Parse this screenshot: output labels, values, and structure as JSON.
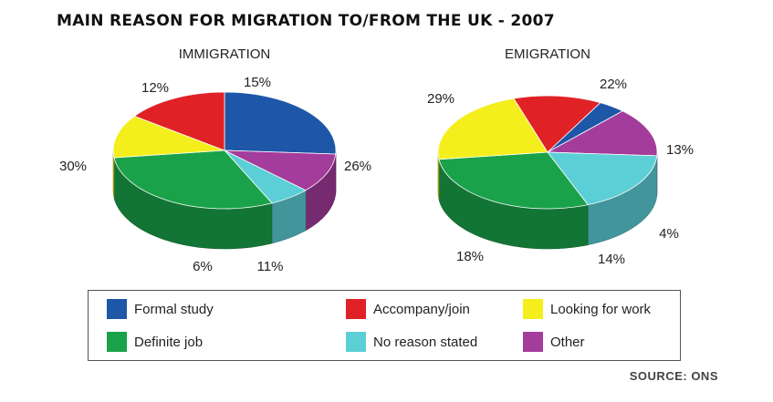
{
  "title": "MAIN REASON FOR MIGRATION TO/FROM THE UK - 2007",
  "source": "SOURCE: ONS",
  "colors": {
    "Formal study": "#1e56a8",
    "Accompany/join": "#e02226",
    "Looking for work": "#f4ef1c",
    "Definite job": "#1aa24a",
    "No reason stated": "#5ccfd6",
    "Other": "#a43c9c"
  },
  "legend": [
    {
      "label": "Formal study",
      "color": "#1e56a8"
    },
    {
      "label": "Accompany/join",
      "color": "#e02226"
    },
    {
      "label": "Looking for work",
      "color": "#f4ef1c"
    },
    {
      "label": "Definite job",
      "color": "#1aa24a"
    },
    {
      "label": "No reason stated",
      "color": "#5ccfd6"
    },
    {
      "label": "Other",
      "color": "#a43c9c"
    }
  ],
  "chart_data": [
    {
      "type": "pie",
      "title": "IMMIGRATION",
      "slices": [
        {
          "label": "Formal study",
          "value": 26,
          "display": "26%"
        },
        {
          "label": "Other",
          "value": 11,
          "display": "11%"
        },
        {
          "label": "No reason stated",
          "value": 6,
          "display": "6%"
        },
        {
          "label": "Definite job",
          "value": 30,
          "display": "30%"
        },
        {
          "label": "Looking for work",
          "value": 12,
          "display": "12%"
        },
        {
          "label": "Accompany/join",
          "value": 15,
          "display": "15%"
        }
      ]
    },
    {
      "type": "pie",
      "title": "EMIGRATION",
      "slices": [
        {
          "label": "Accompany/join",
          "value": 13,
          "display": "13%"
        },
        {
          "label": "Formal study",
          "value": 4,
          "display": "4%"
        },
        {
          "label": "Other",
          "value": 14,
          "display": "14%"
        },
        {
          "label": "No reason stated",
          "value": 18,
          "display": "18%"
        },
        {
          "label": "Definite job",
          "value": 29,
          "display": "29%"
        },
        {
          "label": "Looking for work",
          "value": 22,
          "display": "22%"
        }
      ]
    }
  ]
}
